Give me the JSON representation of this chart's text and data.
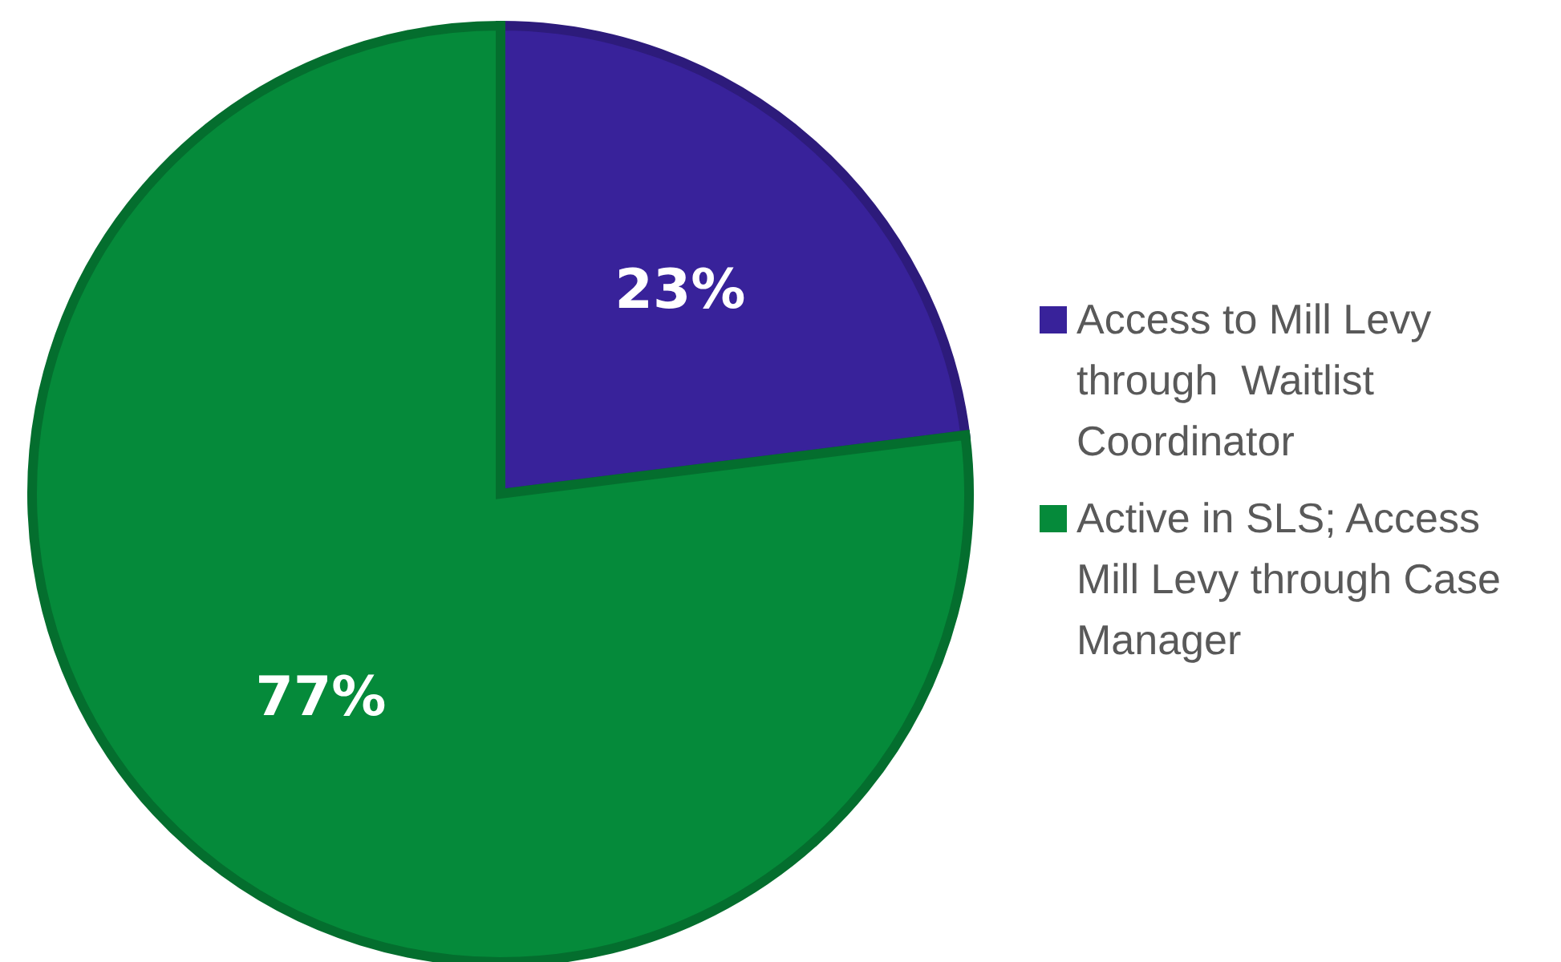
{
  "chart_data": {
    "type": "pie",
    "categories": [
      "Access to Mill Levy through  Waitlist Coordinator",
      "Active in SLS; Access Mill Levy through Case Manager"
    ],
    "values": [
      23,
      77
    ],
    "colors": [
      "#38229a",
      "#058a3a"
    ],
    "value_labels": [
      "23%",
      "77%"
    ],
    "legend": "right"
  }
}
